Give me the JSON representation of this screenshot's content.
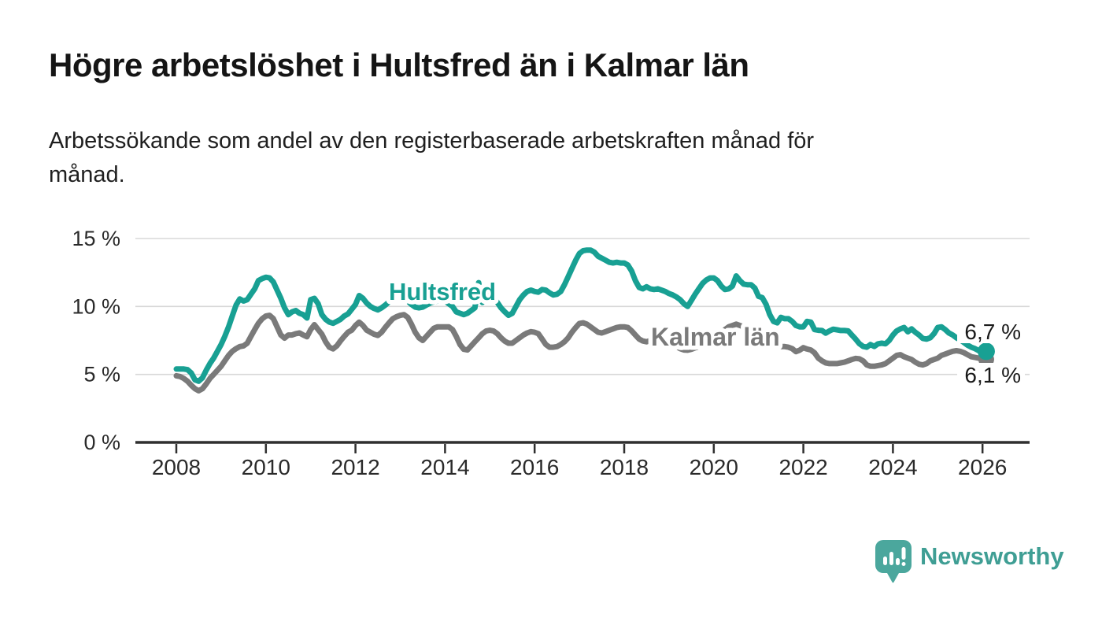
{
  "header": {
    "title": "Högre arbetslöshet i Hultsfred än i Kalmar län",
    "subtitle_line1": "Arbetssökande som andel av den registerbaserade arbetskraften månad för",
    "subtitle_line2": "månad."
  },
  "chart": {
    "y_axis": {
      "ticks": [
        {
          "label": "15 %",
          "value": 15
        },
        {
          "label": "10 %",
          "value": 10
        },
        {
          "label": "5 %",
          "value": 5
        },
        {
          "label": "0 %",
          "value": 0
        }
      ]
    },
    "x_axis": {
      "ticks": [
        {
          "label": "2008",
          "value": 2008
        },
        {
          "label": "2010",
          "value": 2010
        },
        {
          "label": "2012",
          "value": 2012
        },
        {
          "label": "2014",
          "value": 2014
        },
        {
          "label": "2016",
          "value": 2016
        },
        {
          "label": "2018",
          "value": 2018
        },
        {
          "label": "2020",
          "value": 2020
        },
        {
          "label": "2022",
          "value": 2022
        },
        {
          "label": "2024",
          "value": 2024
        },
        {
          "label": "2026",
          "value": 2026
        }
      ]
    },
    "colors": {
      "hultsfred": "#18a093",
      "kalmar": "#7a7a7a",
      "gridline": "#d8d8d8",
      "axis": "#2f2f2f",
      "tick_text": "#2a2a2a",
      "end_label_text": "#1a1a1a"
    }
  },
  "chart_data": {
    "type": "line",
    "title": "Högre arbetslöshet i Hultsfred än i Kalmar län",
    "subtitle": "Arbetssökande som andel av den registerbaserade arbetskraften månad för månad.",
    "unit": "%",
    "x_start_year": 2008,
    "x_interval": "monthly",
    "xlim": [
      2008,
      2026.2
    ],
    "ylim": [
      0,
      15
    ],
    "grid": "horizontal",
    "legend_position": "inline-labels",
    "series": [
      {
        "name": "Hultsfred",
        "color": "#18a093",
        "end_label": "6,7 %",
        "last_value_pct": 6.7,
        "values": [
          5.4,
          5.4,
          5.4,
          5.35,
          5.1,
          4.6,
          4.5,
          4.75,
          5.3,
          5.8,
          6.2,
          6.7,
          7.2,
          7.8,
          8.5,
          9.3,
          10.1,
          10.55,
          10.4,
          10.5,
          10.9,
          11.3,
          11.9,
          12.05,
          12.15,
          12.1,
          11.8,
          11.2,
          10.6,
          9.9,
          9.4,
          9.6,
          9.7,
          9.5,
          9.4,
          9.15,
          10.5,
          10.6,
          10.2,
          9.4,
          9.05,
          8.85,
          8.76,
          8.9,
          9.05,
          9.3,
          9.45,
          9.8,
          10.15,
          10.8,
          10.6,
          10.25,
          10.0,
          9.85,
          9.75,
          9.9,
          10.1,
          10.35,
          10.5,
          10.55,
          10.6,
          10.55,
          10.4,
          10.15,
          9.95,
          9.9,
          9.95,
          10.1,
          10.25,
          10.35,
          10.4,
          10.4,
          10.4,
          10.2,
          10.0,
          9.6,
          9.5,
          9.4,
          9.5,
          9.7,
          9.9,
          11.75,
          10.3,
          10.6,
          10.9,
          10.7,
          10.3,
          9.9,
          9.6,
          9.35,
          9.5,
          10.0,
          10.5,
          10.85,
          11.1,
          11.2,
          11.1,
          11.05,
          11.25,
          11.2,
          11.0,
          10.85,
          10.9,
          11.1,
          11.6,
          12.2,
          12.8,
          13.4,
          13.9,
          14.1,
          14.15,
          14.15,
          14.0,
          13.7,
          13.55,
          13.4,
          13.25,
          13.2,
          13.25,
          13.2,
          13.2,
          13.05,
          12.6,
          11.9,
          11.4,
          11.3,
          11.45,
          11.3,
          11.25,
          11.3,
          11.2,
          11.1,
          10.95,
          10.85,
          10.7,
          10.5,
          10.2,
          10.0,
          10.45,
          10.9,
          11.3,
          11.7,
          11.95,
          12.1,
          12.1,
          11.9,
          11.5,
          11.25,
          11.3,
          11.5,
          12.25,
          11.9,
          11.65,
          11.6,
          11.6,
          11.35,
          10.74,
          10.65,
          10.16,
          9.4,
          8.9,
          8.8,
          9.2,
          9.1,
          9.1,
          8.9,
          8.6,
          8.5,
          8.5,
          8.9,
          8.85,
          8.3,
          8.25,
          8.23,
          8.04,
          8.2,
          8.33,
          8.28,
          8.23,
          8.23,
          8.2,
          7.9,
          7.6,
          7.26,
          7.06,
          7.0,
          7.2,
          7.06,
          7.25,
          7.3,
          7.25,
          7.5,
          7.9,
          8.2,
          8.35,
          8.45,
          8.14,
          8.35,
          8.1,
          7.9,
          7.65,
          7.6,
          7.7,
          8.0,
          8.45,
          8.5,
          8.3,
          8.05,
          7.9,
          7.7,
          7.55,
          7.35,
          7.15,
          7.0,
          6.9,
          6.75,
          6.7,
          6.7
        ]
      },
      {
        "name": "Kalmar län",
        "color": "#7a7a7a",
        "end_label": "6,1 %",
        "last_value_pct": 6.1,
        "values": [
          4.9,
          4.85,
          4.7,
          4.5,
          4.2,
          3.95,
          3.8,
          3.95,
          4.3,
          4.7,
          5.0,
          5.3,
          5.6,
          6.0,
          6.4,
          6.7,
          6.9,
          7.05,
          7.1,
          7.3,
          7.8,
          8.3,
          8.76,
          9.1,
          9.3,
          9.35,
          9.1,
          8.5,
          7.9,
          7.67,
          7.9,
          7.9,
          8.0,
          8.05,
          7.9,
          7.77,
          8.3,
          8.66,
          8.3,
          7.96,
          7.4,
          7.0,
          6.88,
          7.1,
          7.47,
          7.8,
          8.1,
          8.26,
          8.6,
          8.85,
          8.6,
          8.26,
          8.1,
          7.96,
          7.87,
          8.1,
          8.46,
          8.8,
          9.1,
          9.25,
          9.35,
          9.4,
          9.2,
          8.7,
          8.1,
          7.7,
          7.5,
          7.8,
          8.1,
          8.4,
          8.5,
          8.5,
          8.5,
          8.5,
          8.3,
          7.8,
          7.2,
          6.85,
          6.8,
          7.1,
          7.4,
          7.7,
          8.0,
          8.2,
          8.25,
          8.2,
          8.0,
          7.7,
          7.45,
          7.3,
          7.3,
          7.5,
          7.7,
          7.9,
          8.05,
          8.15,
          8.1,
          8.0,
          7.6,
          7.2,
          7.0,
          7.0,
          7.05,
          7.2,
          7.4,
          7.7,
          8.1,
          8.45,
          8.75,
          8.8,
          8.7,
          8.5,
          8.3,
          8.1,
          8.05,
          8.15,
          8.25,
          8.35,
          8.45,
          8.5,
          8.5,
          8.45,
          8.2,
          7.9,
          7.6,
          7.46,
          7.4,
          7.5,
          7.6,
          7.65,
          7.6,
          7.5,
          7.35,
          7.2,
          7.05,
          6.9,
          6.8,
          6.78,
          6.85,
          6.95,
          7.05,
          7.15,
          7.25,
          7.35,
          7.45,
          7.55,
          7.9,
          8.3,
          8.5,
          8.6,
          8.7,
          8.6,
          8.5,
          8.4,
          8.3,
          8.2,
          8.1,
          7.95,
          7.8,
          7.5,
          7.25,
          7.1,
          7.05,
          7.05,
          7.0,
          6.9,
          6.68,
          6.78,
          6.97,
          6.87,
          6.8,
          6.59,
          6.2,
          6.0,
          5.85,
          5.8,
          5.8,
          5.8,
          5.85,
          5.9,
          6.0,
          6.1,
          6.18,
          6.15,
          6.0,
          5.7,
          5.6,
          5.6,
          5.65,
          5.7,
          5.8,
          6.0,
          6.2,
          6.4,
          6.45,
          6.3,
          6.2,
          6.1,
          5.9,
          5.75,
          5.7,
          5.8,
          6.0,
          6.1,
          6.2,
          6.4,
          6.5,
          6.6,
          6.7,
          6.75,
          6.7,
          6.6,
          6.45,
          6.3,
          6.25,
          6.2,
          6.15,
          6.1
        ]
      }
    ]
  },
  "footer": {
    "brand": "Newsworthy"
  }
}
